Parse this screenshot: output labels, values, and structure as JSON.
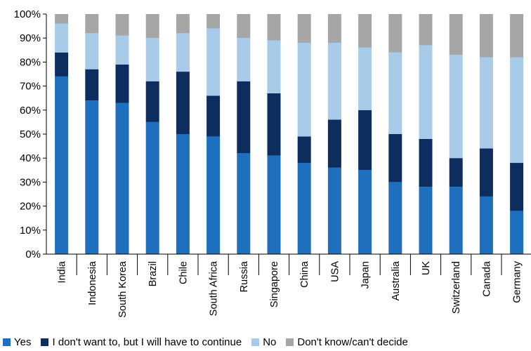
{
  "chart_data": {
    "type": "bar",
    "stacked": true,
    "categories": [
      "India",
      "Indonesia",
      "South Korea",
      "Brazil",
      "Chile",
      "South Africa",
      "Russia",
      "Singapore",
      "China",
      "USA",
      "Japan",
      "Australia",
      "UK",
      "Switzerland",
      "Canada",
      "Germany"
    ],
    "series": [
      {
        "name": "Yes",
        "color": "#1F6FBF",
        "values": [
          74,
          64,
          63,
          55,
          50,
          49,
          42,
          41,
          38,
          36,
          35,
          30,
          28,
          28,
          24,
          18
        ]
      },
      {
        "name": "I don't want to, but I will have to continue",
        "color": "#0D2D5E",
        "values": [
          10,
          13,
          16,
          17,
          26,
          17,
          30,
          26,
          11,
          20,
          25,
          20,
          20,
          12,
          20,
          20
        ]
      },
      {
        "name": "No",
        "color": "#A8CBEA",
        "values": [
          12,
          15,
          12,
          18,
          16,
          28,
          18,
          22,
          39,
          32,
          26,
          34,
          39,
          43,
          38,
          44
        ]
      },
      {
        "name": "Don't know/can't decide",
        "color": "#A6A6A6",
        "values": [
          4,
          8,
          9,
          10,
          8,
          6,
          10,
          11,
          12,
          12,
          14,
          16,
          13,
          17,
          18,
          18
        ]
      }
    ],
    "ylim": [
      0,
      100
    ],
    "yticks": [
      "0%",
      "10%",
      "20%",
      "30%",
      "40%",
      "50%",
      "60%",
      "70%",
      "80%",
      "90%",
      "100%"
    ],
    "legend_position": "bottom",
    "grid": false
  }
}
